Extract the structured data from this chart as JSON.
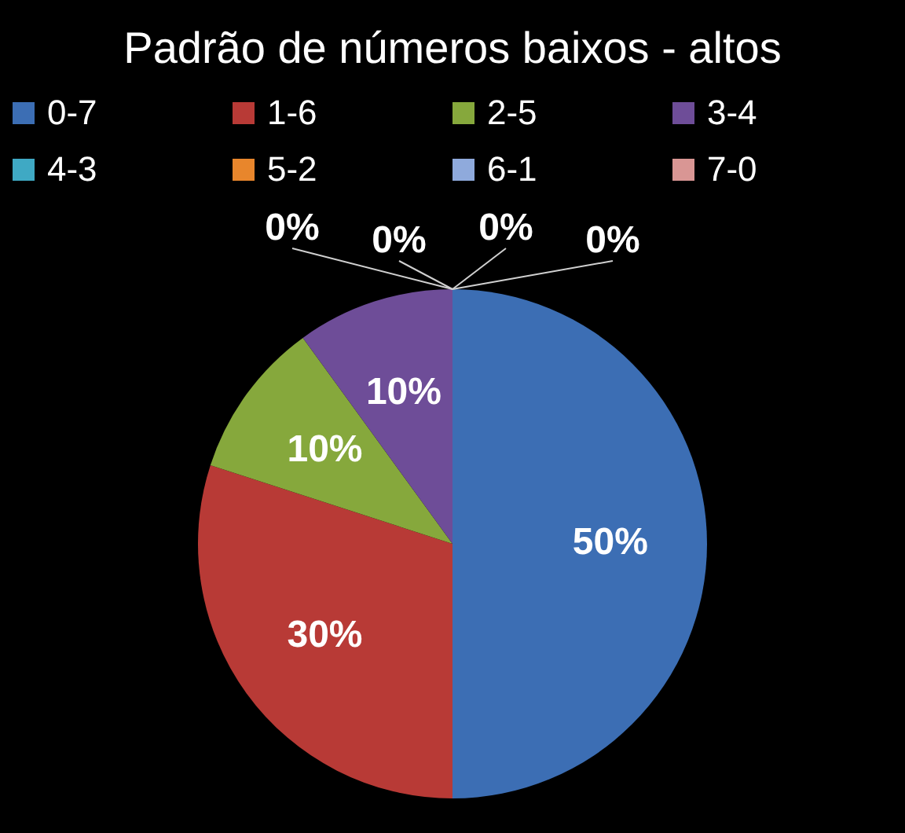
{
  "chart_data": {
    "type": "pie",
    "title": "Padrão de números baixos - altos",
    "categories": [
      "0-7",
      "1-6",
      "2-5",
      "3-4",
      "4-3",
      "5-2",
      "6-1",
      "7-0"
    ],
    "values": [
      50,
      30,
      10,
      10,
      0,
      0,
      0,
      0
    ],
    "value_labels": [
      "50%",
      "30%",
      "10%",
      "10%",
      "0%",
      "0%",
      "0%",
      "0%"
    ],
    "colors": [
      "#3c6eb4",
      "#b83a36",
      "#86a83c",
      "#6e4d98",
      "#3fa9c4",
      "#e8862c",
      "#8faadc",
      "#d99694"
    ],
    "legend": "top"
  }
}
